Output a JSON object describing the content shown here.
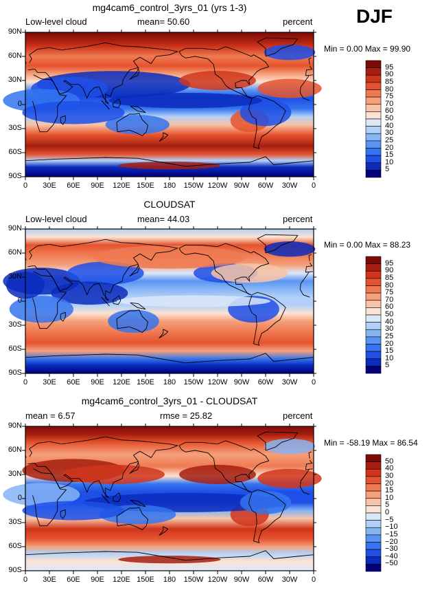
{
  "season": "DJF",
  "x_ticks": [
    "0",
    "30E",
    "60E",
    "90E",
    "120E",
    "150E",
    "180",
    "150W",
    "120W",
    "90W",
    "60W",
    "30W",
    "0"
  ],
  "y_ticks": [
    "90N",
    "60N",
    "30N",
    "0",
    "30S",
    "60S",
    "90S"
  ],
  "colors": {
    "abs": [
      "#00007e",
      "#0b2bbd",
      "#1f4fe6",
      "#3474ee",
      "#5a94f2",
      "#86b4f5",
      "#b2d0f7",
      "#dbe8fa",
      "#fbe2d2",
      "#f8c3a6",
      "#f5a07a",
      "#ef7a52",
      "#e5532e",
      "#d0351b",
      "#a51e10",
      "#7f0a06"
    ],
    "diff": [
      "#00007e",
      "#0b2bbd",
      "#1f4fe6",
      "#3474ee",
      "#5a94f2",
      "#86b4f5",
      "#b2d0f7",
      "#dbe8fa",
      "#fbe2d2",
      "#f8c3a6",
      "#f5a07a",
      "#ef7a52",
      "#e5532e",
      "#d0351b",
      "#a51e10",
      "#7f0a06"
    ]
  },
  "panels": [
    {
      "title": "mg4cam6_control_3yrs_01 (yrs 1-3)",
      "left_label": "Low-level cloud",
      "mean_label": "mean=  50.60",
      "units": "percent",
      "stats": "Min =    0.00 Max =   99.90",
      "colorbar_labels": [
        "95",
        "90",
        "85",
        "80",
        "75",
        "70",
        "60",
        "50",
        "40",
        "30",
        "25",
        "20",
        "15",
        "10",
        "5"
      ],
      "scale": "abs"
    },
    {
      "title": "CLOUDSAT",
      "left_label": "Low-level cloud",
      "mean_label": "mean=  44.03",
      "units": "percent",
      "stats": "Min =    0.00 Max =   88.23",
      "colorbar_labels": [
        "95",
        "90",
        "85",
        "80",
        "75",
        "70",
        "60",
        "50",
        "40",
        "30",
        "25",
        "20",
        "15",
        "10",
        "5"
      ],
      "scale": "abs"
    },
    {
      "title": "mg4cam6_control_3yrs_01 - CLOUDSAT",
      "left_label": "mean =   6.57",
      "mean_label": "rmse =  25.82",
      "units": "percent",
      "stats": "Min = -58.19 Max =  86.54",
      "colorbar_labels": [
        "50",
        "40",
        "30",
        "20",
        "15",
        "10",
        "5",
        "0",
        "−5",
        "−10",
        "−15",
        "−20",
        "−30",
        "−40",
        "−50"
      ],
      "scale": "diff"
    }
  ]
}
